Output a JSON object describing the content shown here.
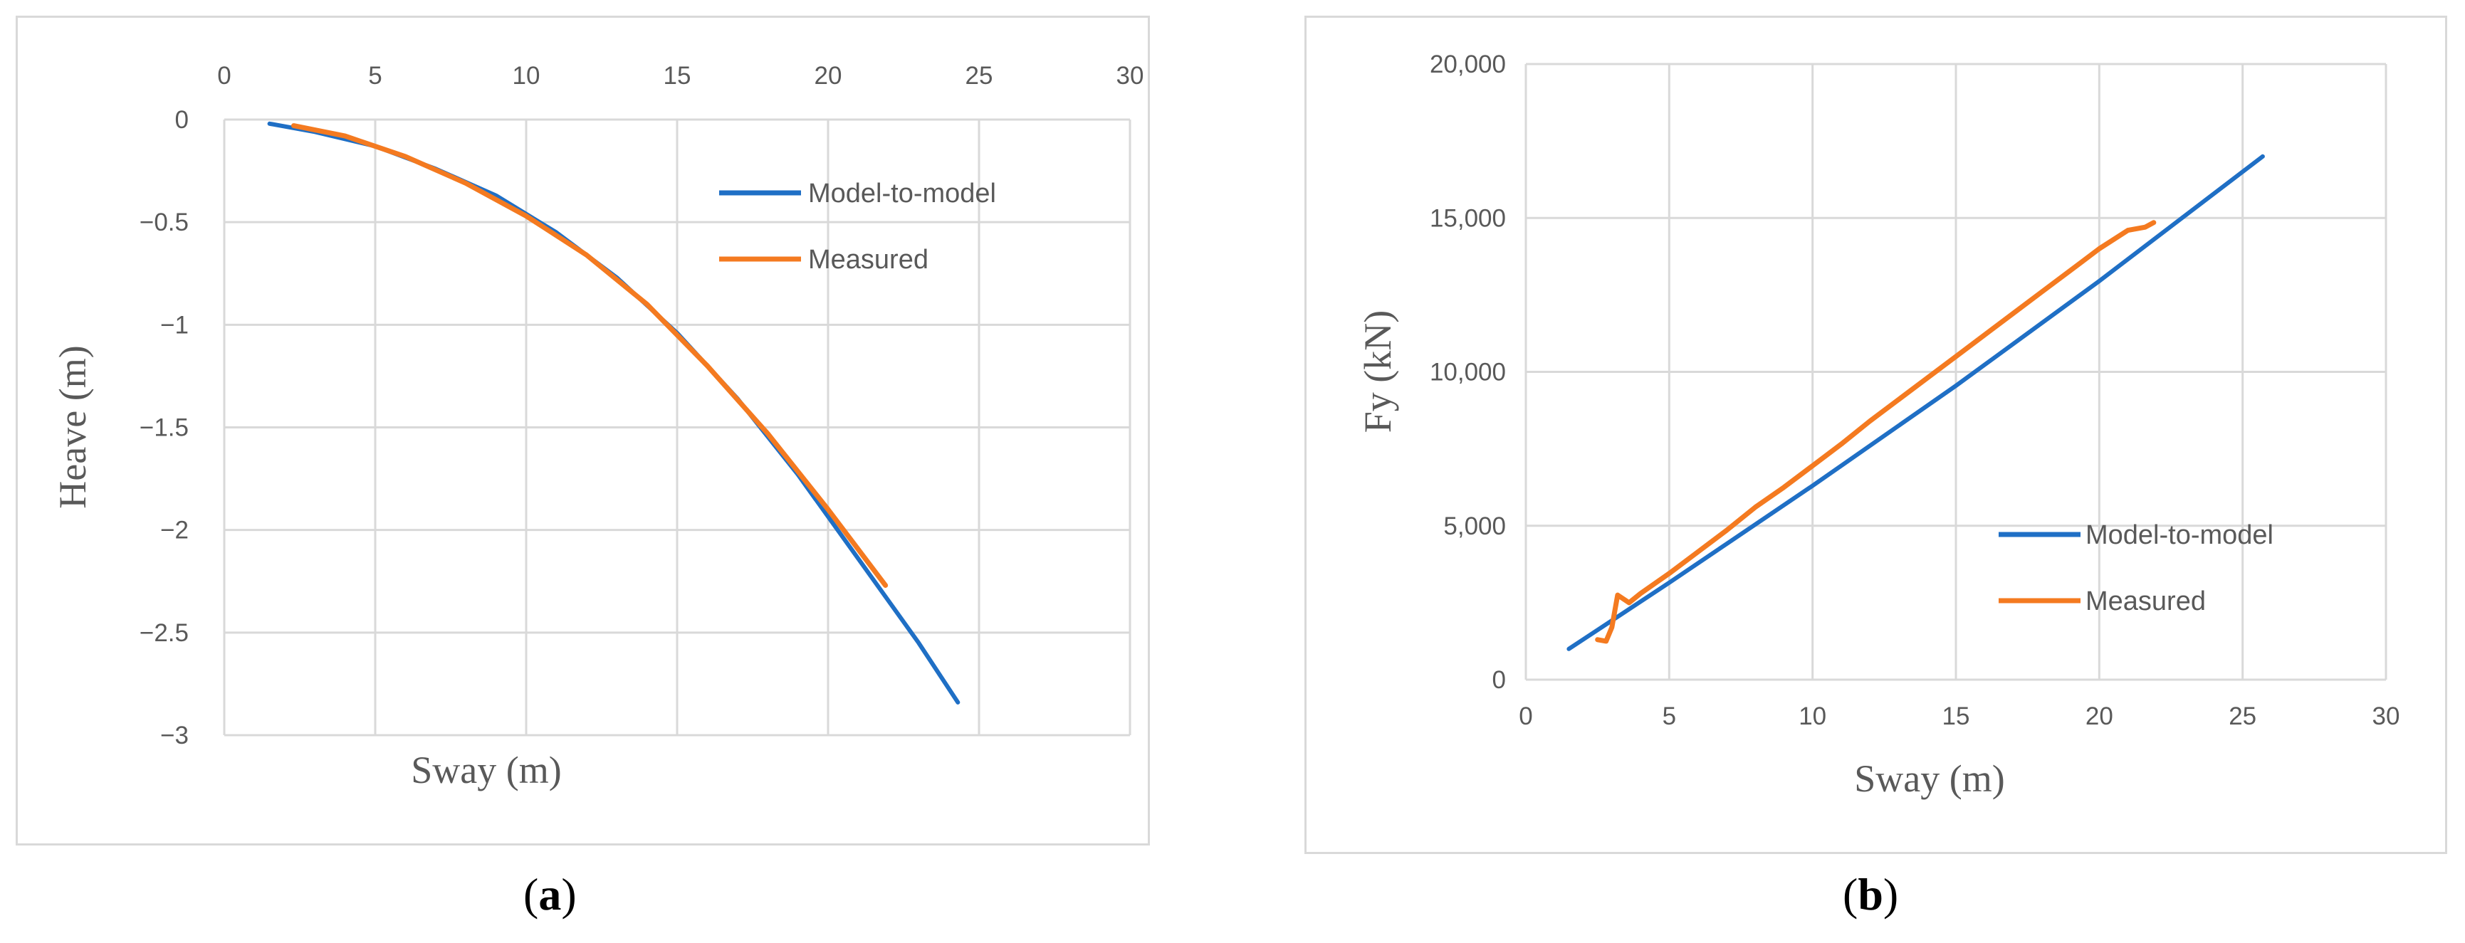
{
  "colors": {
    "model": "#1f6fc5",
    "measured": "#f47a20",
    "grid": "#d9d9d9",
    "text": "#595959"
  },
  "captions": {
    "a": {
      "open": "(",
      "letter": "a",
      "close": ")"
    },
    "b": {
      "open": "(",
      "letter": "b",
      "close": ")"
    }
  },
  "chart_data": [
    {
      "type": "line",
      "xlabel": "Sway (m)",
      "ylabel": "Heave (m)",
      "xlim": [
        0,
        30
      ],
      "ylim": [
        -3,
        0
      ],
      "x_ticks": [
        0,
        5,
        10,
        15,
        20,
        25,
        30
      ],
      "y_ticks": [
        0,
        -0.5,
        -1,
        -1.5,
        -2,
        -2.5,
        -3
      ],
      "x_tick_labels": [
        "0",
        "5",
        "10",
        "15",
        "20",
        "25",
        "30"
      ],
      "y_tick_labels": [
        "0",
        "−0.5",
        "−1",
        "−1.5",
        "−2",
        "−2.5",
        "−3"
      ],
      "x_axis_position": "top",
      "grid": true,
      "legend_position": "top-right",
      "series": [
        {
          "name": "Model-to-model",
          "color": "#1f6fc5",
          "x": [
            1.5,
            3,
            5,
            7,
            9,
            11,
            13,
            15,
            17,
            19,
            21,
            23,
            24.3
          ],
          "y": [
            -0.02,
            -0.06,
            -0.13,
            -0.24,
            -0.37,
            -0.55,
            -0.77,
            -1.04,
            -1.36,
            -1.73,
            -2.14,
            -2.55,
            -2.84
          ]
        },
        {
          "name": "Measured",
          "color": "#f47a20",
          "x": [
            2.3,
            4,
            6,
            8,
            10,
            12,
            14,
            16,
            18,
            20,
            21.9
          ],
          "y": [
            -0.03,
            -0.08,
            -0.18,
            -0.31,
            -0.47,
            -0.66,
            -0.9,
            -1.2,
            -1.53,
            -1.9,
            -2.27
          ]
        }
      ]
    },
    {
      "type": "line",
      "xlabel": "Sway (m)",
      "ylabel": "Fy (kN)",
      "xlim": [
        0,
        30
      ],
      "ylim": [
        0,
        20000
      ],
      "x_ticks": [
        0,
        5,
        10,
        15,
        20,
        25,
        30
      ],
      "y_ticks": [
        0,
        5000,
        10000,
        15000,
        20000
      ],
      "x_tick_labels": [
        "0",
        "5",
        "10",
        "15",
        "20",
        "25",
        "30"
      ],
      "y_tick_labels": [
        "0",
        "5,000",
        "10,000",
        "15,000",
        "20,000"
      ],
      "x_axis_position": "bottom",
      "grid": true,
      "legend_position": "bottom-right",
      "series": [
        {
          "name": "Model-to-model",
          "color": "#1f6fc5",
          "x": [
            1.5,
            5,
            10,
            15,
            20,
            25.7
          ],
          "y": [
            1000,
            3150,
            6300,
            9550,
            12950,
            17000
          ]
        },
        {
          "name": "Measured",
          "color": "#f47a20",
          "x": [
            2.5,
            2.8,
            3.0,
            3.2,
            3.6,
            4.0,
            5.0,
            6.0,
            7.0,
            8.0,
            9.0,
            10.0,
            11.0,
            12.0,
            13.0,
            14.0,
            15.0,
            16.0,
            17.0,
            18.0,
            19.0,
            20.0,
            21.0,
            21.6,
            21.9
          ],
          "y": [
            1300,
            1250,
            1700,
            2750,
            2500,
            2800,
            3450,
            4150,
            4850,
            5600,
            6250,
            6950,
            7650,
            8400,
            9100,
            9800,
            10500,
            11200,
            11900,
            12600,
            13300,
            14000,
            14600,
            14700,
            14850
          ]
        }
      ]
    }
  ]
}
